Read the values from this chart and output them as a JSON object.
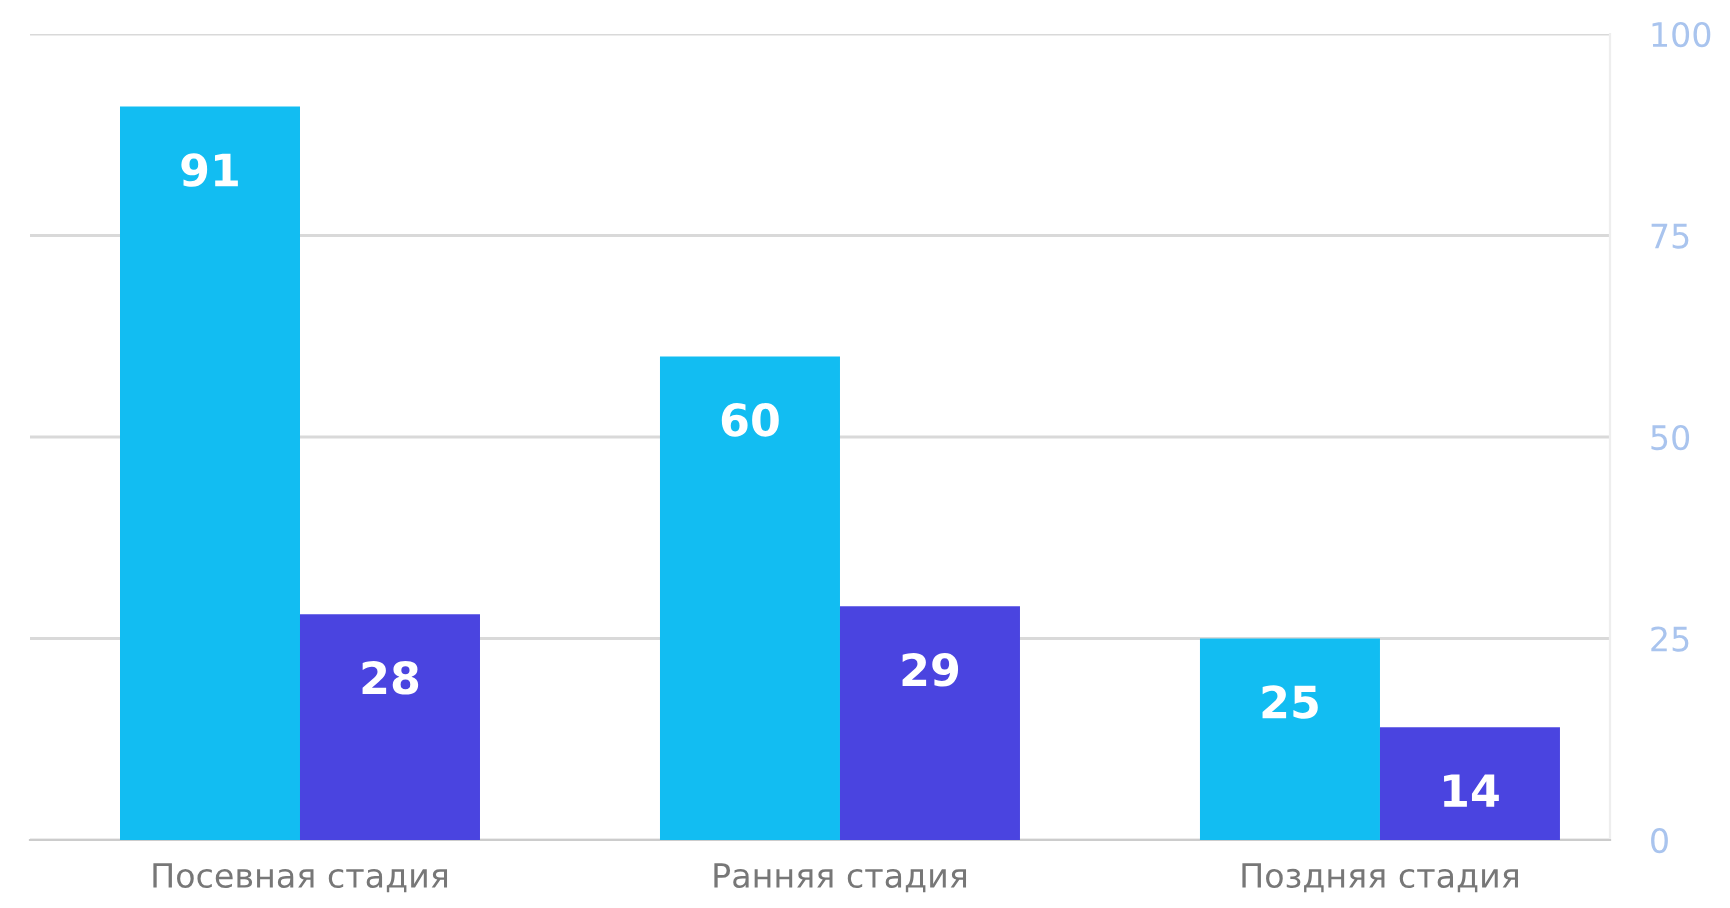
{
  "chart_data": {
    "type": "bar",
    "categories": [
      "Посевная стадия",
      "Ранняя стадия",
      "Поздняя стадия"
    ],
    "series": [
      {
        "color": "#12bdf2",
        "values": [
          91,
          60,
          25
        ]
      },
      {
        "color": "#4a44e0",
        "values": [
          28,
          29,
          14
        ]
      }
    ],
    "ylim": [
      0,
      100
    ],
    "yticks": [
      0,
      25,
      50,
      75,
      100
    ],
    "grid": "y",
    "data_labels": true
  }
}
